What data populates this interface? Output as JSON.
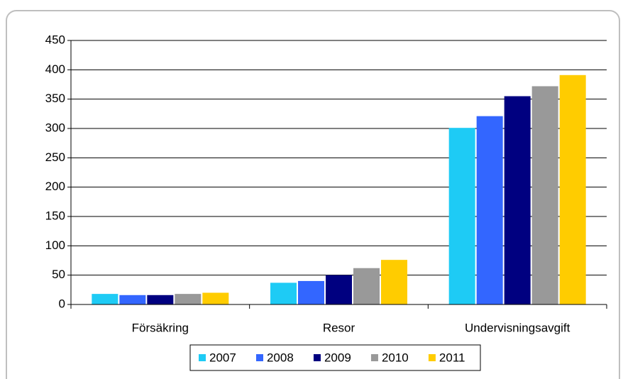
{
  "chart_data": {
    "type": "bar",
    "categories": [
      "Försäkring",
      "Resor",
      "Undervisningsavgift"
    ],
    "series": [
      {
        "name": "2007",
        "color": "#1ecbf5",
        "values": [
          18,
          37,
          301
        ]
      },
      {
        "name": "2008",
        "color": "#3366ff",
        "values": [
          16,
          40,
          321
        ]
      },
      {
        "name": "2009",
        "color": "#000080",
        "values": [
          16,
          50,
          355
        ]
      },
      {
        "name": "2010",
        "color": "#999999",
        "values": [
          18,
          62,
          372
        ]
      },
      {
        "name": "2011",
        "color": "#ffcc00",
        "values": [
          20,
          76,
          391
        ]
      }
    ],
    "ylim": [
      0,
      450
    ],
    "yticks": [
      0,
      50,
      100,
      150,
      200,
      250,
      300,
      350,
      400,
      450
    ],
    "grid": true,
    "legend": "bottom"
  }
}
